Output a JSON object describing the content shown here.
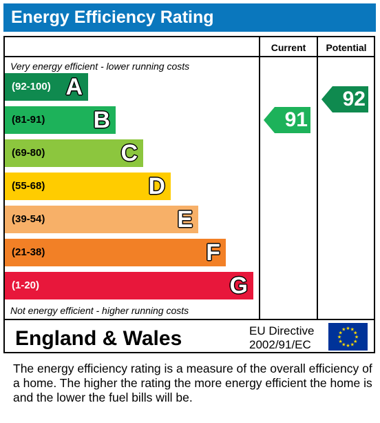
{
  "title": "Energy Efficiency Rating",
  "columns": {
    "current": "Current",
    "potential": "Potential"
  },
  "caption_top": "Very energy efficient - lower running costs",
  "caption_bottom": "Not energy efficient - higher running costs",
  "region": "England & Wales",
  "directive": {
    "line1": "EU Directive",
    "line2": "2002/91/EC"
  },
  "description": "The energy efficiency rating is a measure of the overall efficiency of a home.  The higher the rating the more energy efficient the home is and the lower the fuel bills will be.",
  "colors": {
    "title_bar": "#0a77bd",
    "A": "#0f8a4f",
    "B": "#1db25a",
    "C": "#8cc63e",
    "D": "#ffcc00",
    "E": "#f7b068",
    "F": "#f28026",
    "G": "#e8173b",
    "flag": "#003399",
    "flag_stars": "#ffdd00"
  },
  "chart_data": {
    "type": "bar",
    "title": "Energy Efficiency Rating",
    "bands": [
      {
        "letter": "A",
        "range": "(92-100)",
        "min": 92,
        "max": 100
      },
      {
        "letter": "B",
        "range": "(81-91)",
        "min": 81,
        "max": 91
      },
      {
        "letter": "C",
        "range": "(69-80)",
        "min": 69,
        "max": 80
      },
      {
        "letter": "D",
        "range": "(55-68)",
        "min": 55,
        "max": 68
      },
      {
        "letter": "E",
        "range": "(39-54)",
        "min": 39,
        "max": 54
      },
      {
        "letter": "F",
        "range": "(21-38)",
        "min": 21,
        "max": 38
      },
      {
        "letter": "G",
        "range": "(1-20)",
        "min": 1,
        "max": 20
      }
    ],
    "series": [
      {
        "name": "Current",
        "value": 91,
        "band": "B"
      },
      {
        "name": "Potential",
        "value": 92,
        "band": "A"
      }
    ]
  }
}
